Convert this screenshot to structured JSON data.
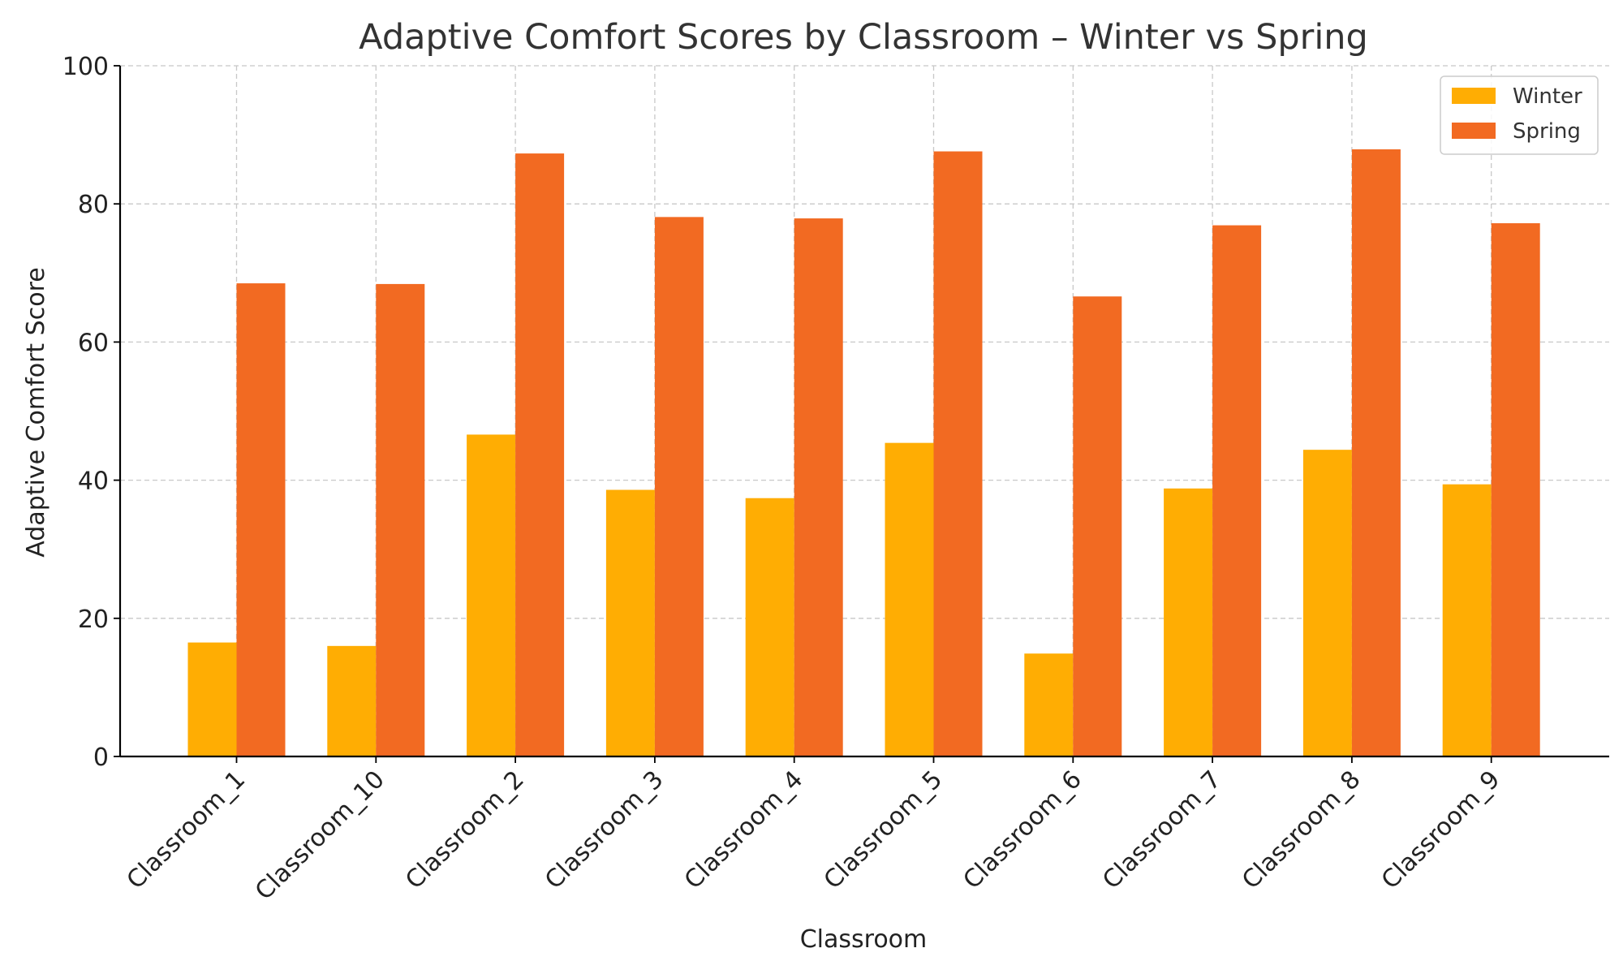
{
  "chart_data": {
    "type": "bar",
    "title": "Adaptive Comfort Scores by Classroom – Winter vs Spring",
    "xlabel": "Classroom",
    "ylabel": "Adaptive Comfort Score",
    "ylim": [
      0,
      100
    ],
    "yticks": [
      0,
      20,
      40,
      60,
      80,
      100
    ],
    "grid": true,
    "legend_position": "top-right",
    "categories": [
      "Classroom_1",
      "Classroom_10",
      "Classroom_2",
      "Classroom_3",
      "Classroom_4",
      "Classroom_5",
      "Classroom_6",
      "Classroom_7",
      "Classroom_8",
      "Classroom_9"
    ],
    "series": [
      {
        "name": "Winter",
        "color": "#FFAD03",
        "values": [
          16.5,
          16.0,
          46.6,
          38.6,
          37.4,
          45.4,
          14.9,
          38.8,
          44.4,
          39.4
        ]
      },
      {
        "name": "Spring",
        "color": "#F26A22",
        "values": [
          68.5,
          68.4,
          87.3,
          78.1,
          77.9,
          87.6,
          66.6,
          76.9,
          87.9,
          77.2
        ]
      }
    ]
  }
}
